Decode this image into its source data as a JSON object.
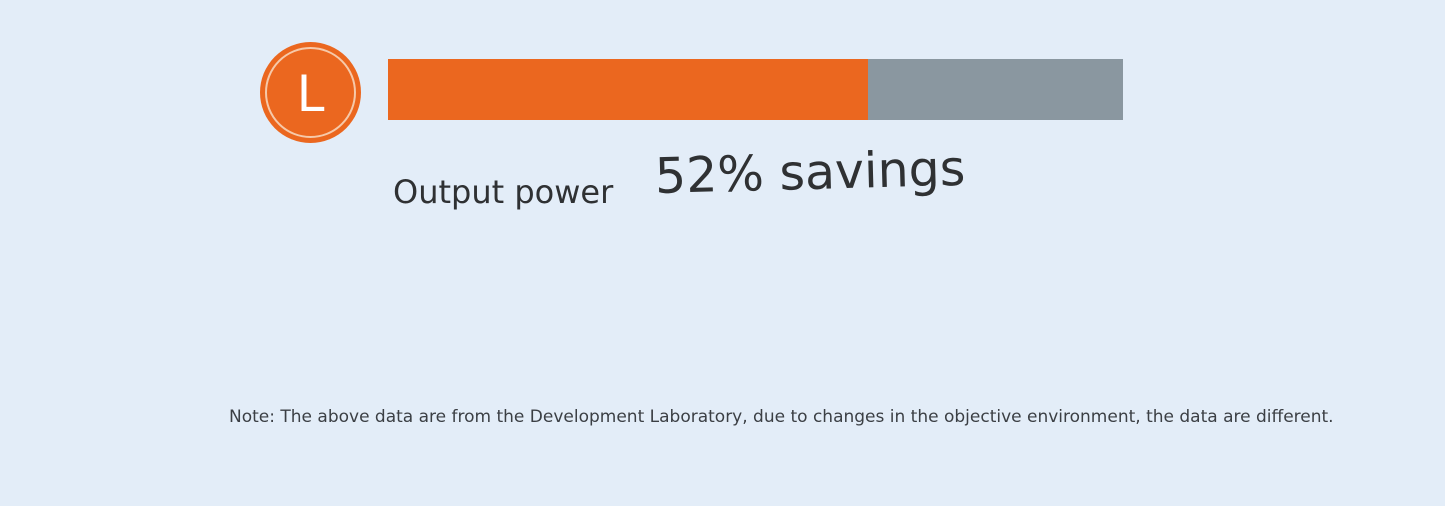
{
  "badge": {
    "letter": "L",
    "color": "#eb671f",
    "ring_color": "#f6c9a9",
    "icon": "letter-l-circle-icon"
  },
  "bar": {
    "fill_fraction": 0.653,
    "fill_color": "#eb671f",
    "track_color": "#8a97a0"
  },
  "label": "Output power",
  "savings": "52% savings",
  "note": "Note: The above data are from the Development Laboratory, due to changes in the objective environment, the data are different."
}
